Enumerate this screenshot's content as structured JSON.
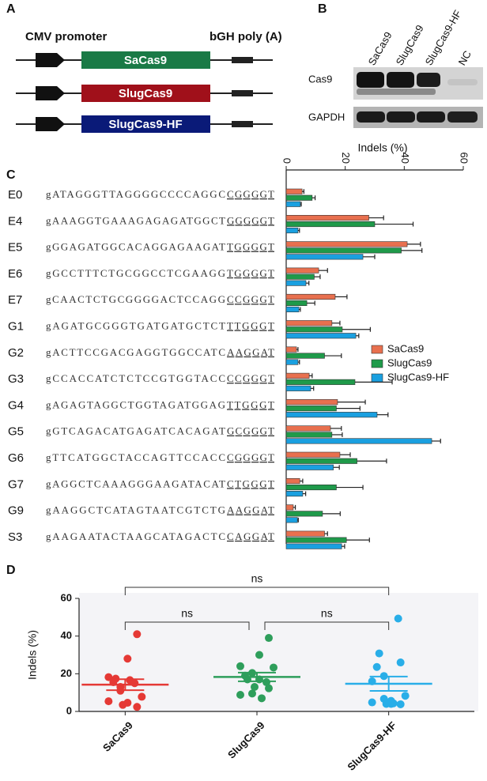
{
  "panel_a": {
    "label": "A",
    "promoter": "CMV promoter",
    "poly_a": "bGH poly (A)",
    "constructs": [
      "SaCas9",
      "SlugCas9",
      "SlugCas9-HF"
    ]
  },
  "panel_b": {
    "label": "B",
    "lanes": [
      "SaCas9",
      "SlugCas9",
      "SlugCas9-HF",
      "NC"
    ],
    "rows": [
      "Cas9",
      "GAPDH"
    ]
  },
  "panel_c": {
    "label": "C"
  },
  "panel_d": {
    "label": "D"
  },
  "chart_data": [
    {
      "type": "bar",
      "orientation": "horizontal",
      "x_label": "Indels (%)",
      "xlim": [
        0,
        60
      ],
      "xticks": [
        0,
        20,
        40,
        60
      ],
      "legend": "right",
      "categories": [
        "E0",
        "E4",
        "E5",
        "E6",
        "E7",
        "G1",
        "G2",
        "G3",
        "G4",
        "G5",
        "G6",
        "G7",
        "G9",
        "S3"
      ],
      "sequences": [
        {
          "guide": "gATAGGGTTAGGGGCCCCAGGC",
          "pam": "CGGGGT"
        },
        {
          "guide": "gAAAGGTGAAAGAGAGATGGCT",
          "pam": "GGGGGT"
        },
        {
          "guide": "gGGAGATGGCACAGGAGAAGAT",
          "pam": "TGGGGT"
        },
        {
          "guide": "gGCCTTTCTGCGGCCTCGAAGG",
          "pam": "TGGGGT"
        },
        {
          "guide": "gCAACTCTGCGGGGACTCCAGG",
          "pam": "CCGGGT"
        },
        {
          "guide": "gAGATGCGGGTGATGATGCTCT",
          "pam": "TTGGGT"
        },
        {
          "guide": "gACTTCCGACGAGGTGGCCATC",
          "pam": "AAGGAT"
        },
        {
          "guide": "gCCACCATCTCTCCGTGGTACC",
          "pam": "CCGGGT"
        },
        {
          "guide": "gAGAGTAGGCTGGTAGATGGAG",
          "pam": "TTGGGT"
        },
        {
          "guide": "gGTCAGACATGAGATCACAGAT",
          "pam": "GCGGGT"
        },
        {
          "guide": "gTTCATGGCTACCAGTTCCACC",
          "pam": "CGGGGT"
        },
        {
          "guide": "gAGGCTCAAAGGGAAGATACAT",
          "pam": "CTGGGT"
        },
        {
          "guide": "gAAGGCTCATAGTAATCGTCTG",
          "pam": "AAGGAT"
        },
        {
          "guide": "gAAGAATACTAAGCATAGACTC",
          "pam": "CAGGAT"
        }
      ],
      "series": [
        {
          "name": "SaCas9",
          "color": "#e8704f",
          "values": [
            5.4,
            28,
            41,
            11,
            16.6,
            15.5,
            3.5,
            7.8,
            17.4,
            15,
            18.2,
            4.6,
            2.4,
            13
          ],
          "errors": [
            0.6,
            5,
            4.5,
            3,
            4,
            2.7,
            0.5,
            1,
            9.4,
            3.7,
            3.5,
            1,
            0.7,
            1
          ]
        },
        {
          "name": "SlugCas9",
          "color": "#1f9a4a",
          "values": [
            8.8,
            30,
            39,
            9.5,
            7,
            19,
            13,
            23.3,
            17,
            15.5,
            24,
            17,
            12.3,
            20.4
          ],
          "errors": [
            1,
            13,
            7,
            2,
            2.7,
            9.5,
            5.7,
            12.6,
            8,
            3.5,
            10,
            9,
            6,
            7.8
          ]
        },
        {
          "name": "SlugCas9-HF",
          "color": "#1aa0e0",
          "values": [
            4.8,
            4,
            26,
            6.7,
            4.3,
            23.6,
            4,
            8.3,
            30.8,
            49.3,
            16,
            5.6,
            3.8,
            18.8
          ],
          "errors": [
            0.3,
            0.5,
            4,
            1,
            0.5,
            1,
            0.5,
            1,
            3.7,
            3,
            2,
            1,
            0.3,
            1
          ]
        }
      ]
    },
    {
      "type": "scatter",
      "y_label": "Indels (%)",
      "ylim": [
        0,
        60
      ],
      "yticks": [
        0,
        20,
        40,
        60
      ],
      "categories": [
        "SaCas9",
        "SlugCas9",
        "SlugCas9-HF"
      ],
      "annotations": [
        "ns",
        "ns",
        "ns"
      ],
      "series": [
        {
          "name": "SaCas9",
          "color": "#e53935",
          "values": [
            5.4,
            28,
            41,
            11,
            16.6,
            15.5,
            3.5,
            7.8,
            17.4,
            15,
            18.2,
            4.6,
            2.4,
            13
          ],
          "mean": 14.2,
          "sem": 2.9
        },
        {
          "name": "SlugCas9",
          "color": "#2e9e5b",
          "values": [
            8.8,
            30,
            39,
            9.5,
            7,
            19,
            13,
            23.3,
            17,
            15.5,
            24,
            17,
            12.3,
            20.4
          ],
          "mean": 18.3,
          "sem": 2.3
        },
        {
          "name": "SlugCas9-HF",
          "color": "#29aee8",
          "values": [
            4.8,
            4,
            26,
            6.7,
            4.3,
            23.6,
            4,
            8.3,
            30.8,
            49.3,
            16,
            5.6,
            3.8,
            18.8
          ],
          "mean": 14.7,
          "sem": 3.8
        }
      ]
    }
  ]
}
